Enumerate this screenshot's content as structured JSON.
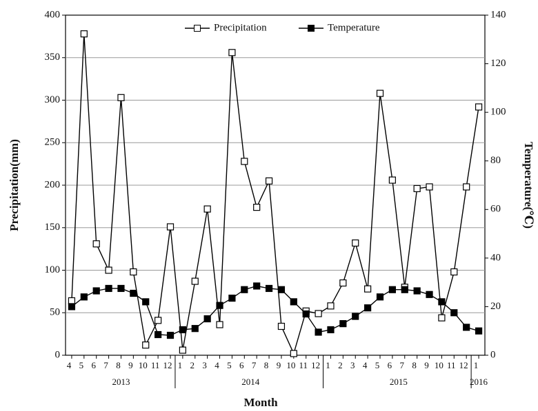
{
  "chart_data": {
    "type": "line",
    "x_label": "Month",
    "y_label": "Precipitation(mm)",
    "y2_label": "Temperature(℃)",
    "categories": [
      "4",
      "5",
      "6",
      "7",
      "8",
      "9",
      "10",
      "11",
      "12",
      "1",
      "2",
      "3",
      "4",
      "5",
      "6",
      "7",
      "8",
      "9",
      "10",
      "11",
      "12",
      "1",
      "2",
      "3",
      "4",
      "5",
      "6",
      "7",
      "8",
      "9",
      "10",
      "11",
      "12",
      "1"
    ],
    "years": [
      "2013",
      "2014",
      "2015",
      "2016"
    ],
    "series": [
      {
        "name": "Precipitation",
        "color": "#000000",
        "marker": "open-square",
        "values": [
          64,
          378,
          131,
          100,
          303,
          98,
          12,
          41,
          151,
          6,
          87,
          172,
          36,
          356,
          228,
          174,
          205,
          34,
          2,
          52,
          49,
          58,
          85,
          132,
          78,
          308,
          206,
          80,
          196,
          198,
          44,
          98,
          198,
          292
        ]
      },
      {
        "name": "Temperature",
        "color": "#000000",
        "marker": "filled-square",
        "axis": "y2",
        "values": [
          20,
          24,
          26.5,
          27.5,
          27.5,
          25.5,
          22,
          8.5,
          8.2,
          10.5,
          11,
          15,
          20.5,
          23.5,
          27,
          28.5,
          27.5,
          27,
          22,
          17,
          9.5,
          10.5,
          13,
          16,
          19.5,
          24,
          27,
          27,
          26.5,
          25,
          22,
          17.5,
          11.5,
          10
        ]
      }
    ],
    "ylim": [
      0,
      400
    ],
    "yticks": [
      0,
      50,
      100,
      150,
      200,
      250,
      300,
      350,
      400
    ],
    "y2lim": [
      0,
      140
    ],
    "y2ticks": [
      0,
      20,
      40,
      60,
      80,
      100,
      120,
      140
    ],
    "grid": true,
    "legend": "top"
  }
}
